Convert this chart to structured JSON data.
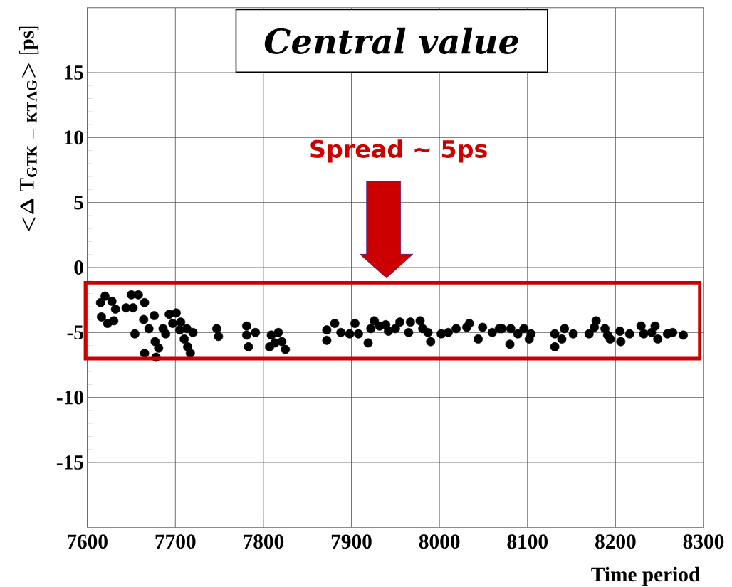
{
  "chart_data": {
    "type": "scatter",
    "title": "Central value",
    "xlabel": "Time period",
    "ylabel": "{<}\\Delta\\ \\mathrm{T}_{\\mathrm{GTK\\ {-}\\ KTAG}}{>}\\ [\\mathrm{ps}]",
    "x": [
      7620,
      7615,
      7628,
      7632,
      7616,
      7623,
      7630,
      7644,
      7650,
      7658,
      7665,
      7652,
      7654,
      7664,
      7670,
      7676,
      7665,
      7678,
      7677,
      7681,
      7686,
      7689,
      7693,
      7701,
      7697,
      7706,
      7705,
      7713,
      7720,
      7710,
      7714,
      7717,
      7747,
      7749,
      7781,
      7791,
      7781,
      7783,
      7809,
      7817,
      7821,
      7807,
      7813,
      7825,
      7872,
      7872,
      7881,
      7888,
      7898,
      7904,
      7908,
      7919,
      7922,
      7926,
      7932,
      7939,
      7942,
      7950,
      7955,
      7965,
      7967,
      7978,
      7981,
      7987,
      7990,
      8002,
      8010,
      8019,
      8031,
      8034,
      8044,
      8049,
      8060,
      8068,
      8071,
      8081,
      8080,
      8089,
      8096,
      8102,
      8104,
      8131,
      8131,
      8142,
      8139,
      8152,
      8170,
      8178,
      8176,
      8188,
      8191,
      8194,
      8205,
      8206,
      8216,
      8229,
      8232,
      8241,
      8245,
      8248,
      8259,
      8265,
      8277
    ],
    "values": [
      -2.2,
      -2.7,
      -2.6,
      -3.2,
      -3.8,
      -4.3,
      -4.1,
      -3.1,
      -2.1,
      -2.1,
      -2.7,
      -3.1,
      -5.1,
      -4.0,
      -4.7,
      -3.7,
      -6.6,
      -6.9,
      -5.7,
      -6.2,
      -4.7,
      -5.1,
      -3.6,
      -3.5,
      -4.3,
      -4.2,
      -4.8,
      -4.7,
      -5.0,
      -5.5,
      -6.1,
      -6.6,
      -4.7,
      -5.3,
      -4.5,
      -5.0,
      -5.2,
      -6.1,
      -5.2,
      -5.0,
      -5.7,
      -6.1,
      -5.8,
      -6.3,
      -4.8,
      -5.6,
      -4.3,
      -5.0,
      -5.1,
      -4.3,
      -5.1,
      -5.8,
      -4.7,
      -4.1,
      -4.5,
      -4.4,
      -4.9,
      -4.7,
      -4.2,
      -5.0,
      -4.2,
      -4.1,
      -4.7,
      -5.0,
      -5.7,
      -5.1,
      -5.0,
      -4.7,
      -4.6,
      -4.3,
      -5.5,
      -4.6,
      -5.0,
      -4.7,
      -4.7,
      -4.7,
      -5.9,
      -5.1,
      -4.7,
      -5.5,
      -5.1,
      -5.1,
      -6.1,
      -4.7,
      -5.5,
      -5.1,
      -5.1,
      -4.1,
      -4.6,
      -4.7,
      -5.2,
      -5.5,
      -4.9,
      -5.7,
      -5.1,
      -4.5,
      -5.1,
      -5.0,
      -4.5,
      -5.5,
      -5.1,
      -5.0,
      -5.2
    ],
    "color": "#000000",
    "marker": "circle",
    "xlim": [
      7600,
      8300
    ],
    "ylim": [
      -20,
      20
    ],
    "xticks": [
      7600,
      7700,
      7800,
      7900,
      8000,
      8100,
      8200,
      8300
    ],
    "yticks": [
      -15,
      -10,
      -5,
      0,
      5,
      10,
      15
    ],
    "grid": true,
    "annotations": [
      "Spread ~ 5ps"
    ]
  }
}
